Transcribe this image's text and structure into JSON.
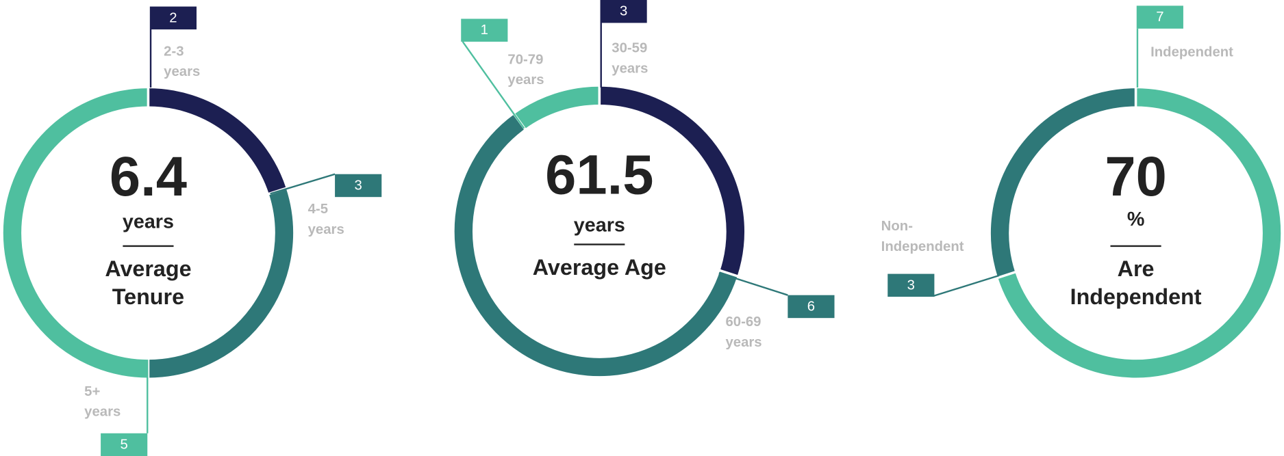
{
  "chart_data": [
    {
      "type": "donut",
      "center_value": 6.4,
      "center_unit": "years",
      "center_label": "Average Tenure",
      "categories": [
        "2-3 years",
        "4-5 years",
        "5+ years"
      ],
      "values": [
        2,
        3,
        5
      ],
      "colors": [
        "#1c1f52",
        "#2e7878",
        "#4fbf9f"
      ]
    },
    {
      "type": "donut",
      "center_value": 61.5,
      "center_unit": "years",
      "center_label": "Average Age",
      "categories": [
        "30-59 years",
        "60-69 years",
        "70-79 years"
      ],
      "values": [
        3,
        6,
        1
      ],
      "colors": [
        "#1c1f52",
        "#2e7878",
        "#4fbf9f"
      ]
    },
    {
      "type": "donut",
      "center_value": 70,
      "center_unit": "%",
      "center_label": "Are Independent",
      "categories": [
        "Independent",
        "Non-Independent"
      ],
      "values": [
        7,
        3
      ],
      "colors": [
        "#4fbf9f",
        "#2e7878"
      ]
    }
  ]
}
